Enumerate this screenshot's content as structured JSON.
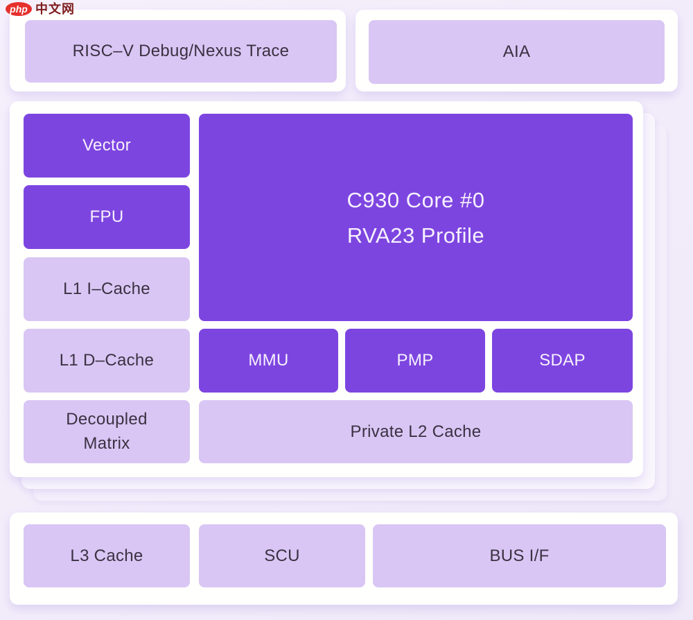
{
  "watermark": {
    "logo_text": "php",
    "site_text": "中文网"
  },
  "colors": {
    "page_bg": "#f2edfa",
    "card_bg": "#ffffff",
    "accent_dark": "#7d45e0",
    "accent_light": "#d9c6f4",
    "text_dark": "#3b3142",
    "text_light": "#f7f1fd",
    "logo_red": "#e5302c"
  },
  "top_row": {
    "debug_label": "RISC–V Debug/Nexus Trace",
    "aia_label": "AIA"
  },
  "core_cluster": {
    "title_line1": "C930 Core #0",
    "title_line2": "RVA23 Profile",
    "left_blocks": [
      {
        "label": "Vector",
        "variant": "dark"
      },
      {
        "label": "FPU",
        "variant": "dark"
      },
      {
        "label": "L1 I–Cache",
        "variant": "light"
      },
      {
        "label": "L1 D–Cache",
        "variant": "light"
      },
      {
        "label": "Decoupled Matrix",
        "variant": "light"
      }
    ],
    "mmu_label": "MMU",
    "pmp_label": "PMP",
    "sdap_label": "SDAP",
    "l2_label": "Private L2 Cache",
    "stacked_cards_behind": 2
  },
  "uncore_row": {
    "l3_label": "L3 Cache",
    "scu_label": "SCU",
    "bus_label": "BUS I/F"
  }
}
